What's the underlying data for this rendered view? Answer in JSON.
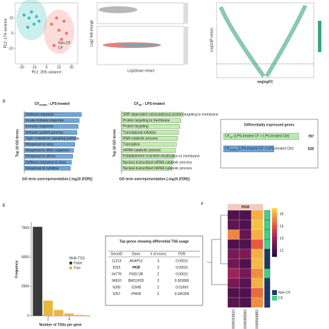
{
  "pca": {
    "ylabel": "PC2: 17% variance",
    "xlabel": "PC1: 25% variance",
    "xlim": [
      -25,
      25
    ],
    "ylim": [
      -20,
      20
    ],
    "xticks": [
      -20,
      -10,
      0,
      10,
      20
    ],
    "yticks": [
      -10,
      0,
      10
    ],
    "series": [
      {
        "name": "Non-CF",
        "color": "#35bfbd",
        "x": [
          -18,
          -14,
          -12,
          -10,
          -8,
          -15,
          -6
        ],
        "y": [
          12,
          10,
          14,
          6,
          11,
          4,
          8
        ]
      },
      {
        "name": "CF",
        "color": "#ef7468",
        "x": [
          4,
          8,
          10,
          12,
          14,
          6,
          16
        ],
        "y": [
          6,
          10,
          2,
          -4,
          8,
          -8,
          0
        ]
      }
    ]
  },
  "ma": {
    "ylabel": "Log2 fold change",
    "xlabel": "Log2(base mean)"
  },
  "volcano": {
    "ylabel": "-Log10(P-value)",
    "xlabel": "neglogFC"
  },
  "go": {
    "label": "D",
    "ylabel": "Top 10 GO terms",
    "xlabel": "GO term overrepresentation [-log10 (FDR)]",
    "charts": [
      {
        "title": "CF",
        "title_sub": "DOWN",
        "title_rest": " - LPS-treated",
        "color": "#6aa6e0",
        "xlim": [
          0,
          30
        ],
        "categories": [
          "Defence response",
          "Innate immune response",
          "Immune response",
          "Immune system process",
          "Type I interferon signaling pathway",
          "Response to virus",
          "Response to other organism",
          "Response to stress",
          "Defence response to virus",
          "Response to cytokine"
        ],
        "values": [
          26,
          25,
          24.5,
          24,
          23.5,
          23,
          22.5,
          22,
          21.5,
          21
        ]
      },
      {
        "title": "CF",
        "title_sub": "UP",
        "title_rest": " - LPS-treated",
        "color": "#bff0a8",
        "xlim": [
          0,
          30
        ],
        "categories": [
          "SRP-dependent cotranslational protein targeting to membrane",
          "Protein targeting to membrane",
          "Protein targeting",
          "Translational initiation",
          "RNA catabolic process",
          "Translation",
          "mRNA catabolic process",
          "Establishment of protein localization to membrane",
          "Nuclear-transcribed mRNA catabolic process",
          "Nuclear-transcribed mRNA catabolic process"
        ],
        "values": [
          28,
          27,
          26.5,
          26,
          25.5,
          25,
          24.5,
          24,
          23.5,
          23
        ]
      }
    ]
  },
  "de": {
    "title": "Differentially expressed genes",
    "xlim": [
      0,
      800
    ],
    "rows": [
      {
        "label": "CF",
        "label_sub": "UP",
        "label_rest": " (LPS-treated CF > LPS-treated Ctrl)",
        "value": 787,
        "color": "#b7ecb0"
      },
      {
        "label": "CF",
        "label_sub": "DOWN",
        "label_rest": " (LPS-treated CF < LPS-treated Ctrl)",
        "value": 528,
        "color": "#6aa6e0"
      }
    ]
  },
  "tss": {
    "label": "E",
    "ylabel": "Frequency",
    "xlabel": "Number of TSSs per gene",
    "legend_title": "Multi-TSS",
    "xlim": [
      0.4,
      6
    ],
    "xticks": [
      2,
      4
    ],
    "ylim": [
      0,
      8000
    ],
    "yticks": [
      0,
      2500,
      5000,
      7500
    ],
    "series": [
      {
        "name": "False",
        "color": "#3a3a3a",
        "x": [
          1
        ],
        "values": [
          7600
        ]
      },
      {
        "name": "True",
        "color": "#e8b83a",
        "x": [
          2,
          3,
          4,
          5
        ],
        "values": [
          1300,
          500,
          200,
          80
        ]
      }
    ]
  },
  "table": {
    "title": "Top genes showing differential TSS usage",
    "header": [
      "GeneID",
      "Gene",
      "# of exons",
      "FDR"
    ],
    "rows": [
      [
        "11214",
        "AKAP13",
        "4",
        "0.00011"
      ],
      [
        "5315",
        "PKM",
        "2",
        "0.00011"
      ],
      [
        "64778",
        "FNDC3B",
        "2",
        "0.00011"
      ],
      [
        "96610",
        "BMS1P20",
        "2",
        "0.002865"
      ],
      [
        "6390",
        "SDHB",
        "2",
        "0.01669"
      ],
      [
        "5257",
        "PHKB",
        "2",
        "0.036309"
      ]
    ]
  },
  "heatmap": {
    "label": "F",
    "title": "PKM",
    "columns": [
      "ENST00000319622",
      "ENST00000389093",
      "ENST00000568883"
    ],
    "clim": [
      11.5,
      15.5
    ],
    "cticks": [
      12,
      13,
      14,
      15
    ],
    "values": [
      [
        12,
        12,
        15
      ],
      [
        12.2,
        12,
        15.2
      ],
      [
        14.5,
        12.3,
        15
      ],
      [
        12,
        12,
        14
      ],
      [
        12.5,
        12.6,
        15
      ],
      [
        12.4,
        12,
        15.1
      ],
      [
        13,
        12.5,
        14.6
      ],
      [
        12.5,
        12.1,
        15
      ],
      [
        12,
        12,
        14.2
      ],
      [
        12.1,
        12,
        14.6
      ]
    ],
    "groups": [
      "CF",
      "CF",
      "CF",
      "CF",
      "Non-CF",
      "Non-CF",
      "CF",
      "Non-CF",
      "Non-CF",
      "Non-CF"
    ],
    "legend": [
      {
        "name": "Non-CF",
        "color": "#1f3a6b"
      },
      {
        "name": "CF",
        "color": "#3fd08c"
      }
    ]
  }
}
